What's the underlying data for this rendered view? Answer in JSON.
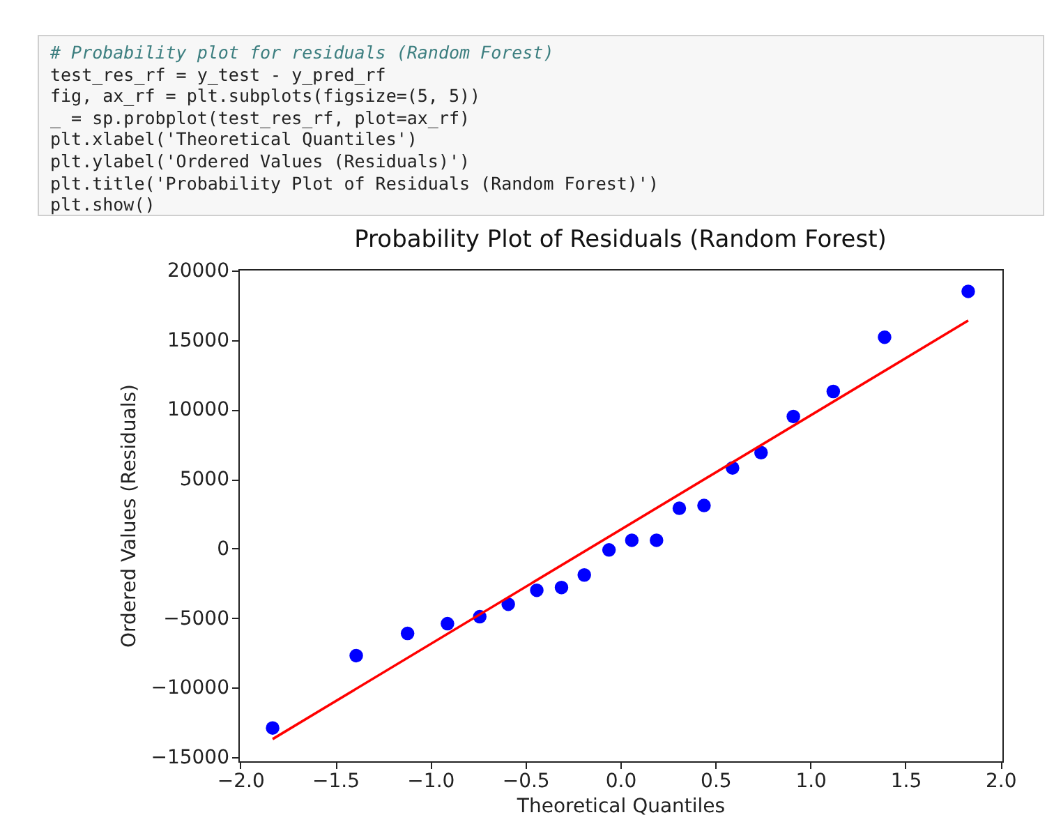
{
  "chart_data": {
    "type": "scatter",
    "title": "Probability Plot of Residuals (Random Forest)",
    "xlabel": "Theoretical Quantiles",
    "ylabel": "Ordered Values (Residuals)",
    "annotations": [
      "# Probability plot for residuals (Random Forest)",
      "test_res_rf = y_test - y_pred_rf",
      "fig, ax_rf = plt.subplots(figsize=(5, 5))",
      "_ = sp.probplot(test_res_rf, plot=ax_rf)",
      "plt.xlabel('Theoretical Quantiles')",
      "plt.ylabel('Ordered Values (Residuals)')",
      "plt.title('Probability Plot of Residuals (Random Forest)')",
      "plt.show()"
    ],
    "x": [
      -1.83,
      -1.39,
      -1.12,
      -0.91,
      -0.74,
      -0.59,
      -0.44,
      -0.31,
      -0.19,
      -0.06,
      0.06,
      0.19,
      0.31,
      0.44,
      0.59,
      0.74,
      0.91,
      1.12,
      1.39,
      1.83
    ],
    "series": [
      {
        "color": "#0000ff",
        "marker": "circle",
        "values": [
          -12900,
          -7700,
          -6100,
          -5400,
          -4900,
          -4000,
          -3000,
          -2800,
          -1900,
          -100,
          600,
          600,
          2900,
          3100,
          5800,
          6900,
          9500,
          11300,
          15200,
          18500
        ]
      },
      {
        "type": "line",
        "color": "#ff0000",
        "line_style": "solid",
        "x": [
          -1.83,
          1.83
        ],
        "values": [
          -13700,
          16400
        ]
      }
    ],
    "xlim": [
      -2.01,
      2.01
    ],
    "ylim": [
      -15300,
      20100
    ],
    "xticks": [
      {
        "value": -2,
        "label": "−2.0"
      },
      -1.5,
      {
        "value": -1,
        "label": "−1.0"
      },
      -0.5,
      {
        "value": 0,
        "label": "0.0"
      },
      0.5,
      {
        "value": 1,
        "label": "1.0"
      },
      1.5,
      {
        "value": 2,
        "label": "2.0"
      }
    ],
    "yticks": [
      -15000,
      -10000,
      -5000,
      0,
      5000,
      10000,
      15000,
      20000
    ],
    "grid": false
  }
}
